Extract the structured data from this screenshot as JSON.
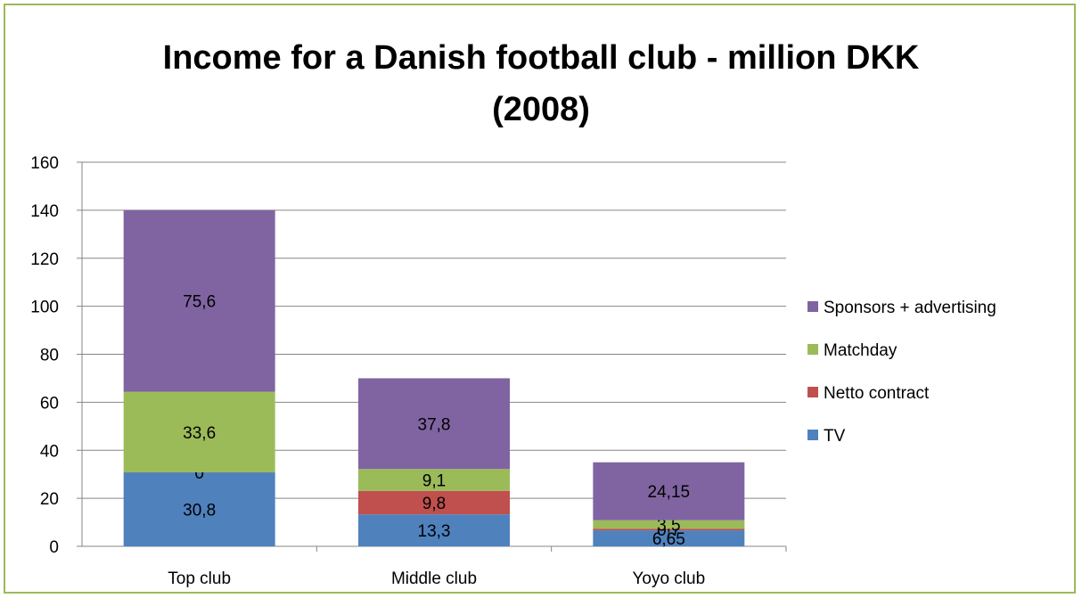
{
  "chart_data": {
    "type": "bar",
    "stacked": true,
    "title_lines": [
      "Income for a Danish football club - million DKK",
      "(2008)"
    ],
    "categories": [
      "Top club",
      "Middle club",
      "Yoyo club"
    ],
    "series": [
      {
        "name": "TV",
        "values": [
          30.8,
          13.3,
          6.65
        ],
        "labels": [
          "30,8",
          "13,3",
          "6,65"
        ],
        "color": "#4f81bd"
      },
      {
        "name": "Netto contract",
        "values": [
          0,
          9.8,
          0.7
        ],
        "labels": [
          "0",
          "9,8",
          "0,7"
        ],
        "color": "#c0504d"
      },
      {
        "name": "Matchday",
        "values": [
          33.6,
          9.1,
          3.5
        ],
        "labels": [
          "33,6",
          "9,1",
          "3,5"
        ],
        "color": "#9bbb59"
      },
      {
        "name": "Sponsors + advertising",
        "values": [
          75.6,
          37.8,
          24.15
        ],
        "labels": [
          "75,6",
          "37,8",
          "24,15"
        ],
        "color": "#8064a2"
      }
    ],
    "ylim": [
      0,
      160
    ],
    "yticks": [
      "0",
      "20",
      "40",
      "60",
      "80",
      "100",
      "120",
      "140",
      "160"
    ],
    "grid": true,
    "legend_position": "right"
  }
}
